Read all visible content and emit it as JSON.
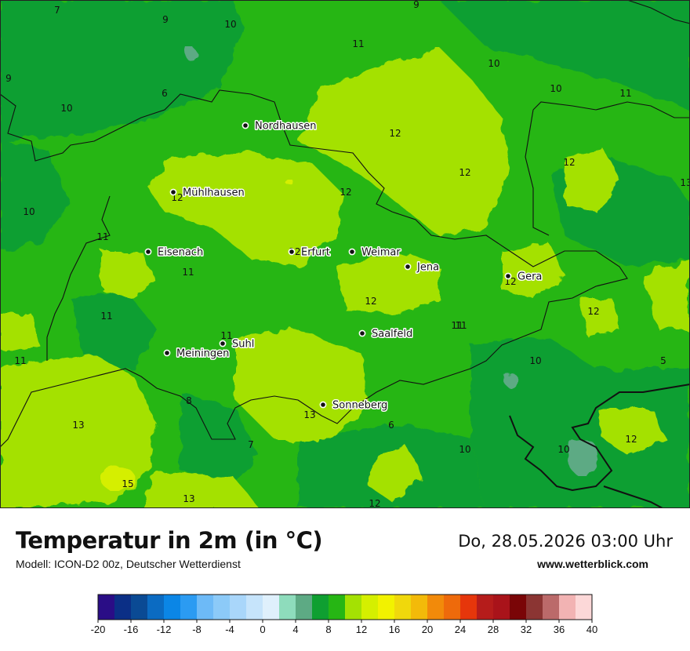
{
  "header": {
    "title": "Temperatur in 2m (in °C)",
    "model": "Modell: ICON-D2 00z, Deutscher Wetterdienst",
    "datetime": "Do, 28.05.2026 03:00 Uhr",
    "website": "www.wetterblick.com"
  },
  "map": {
    "cities": [
      {
        "name": "Nordhausen"
      },
      {
        "name": "Mühlhausen"
      },
      {
        "name": "Eisenach"
      },
      {
        "name": "Erfurt"
      },
      {
        "name": "Weimar"
      },
      {
        "name": "Jena"
      },
      {
        "name": "Gera"
      },
      {
        "name": "Saalfeld"
      },
      {
        "name": "Suhl"
      },
      {
        "name": "Meiningen"
      },
      {
        "name": "Sonneberg"
      }
    ],
    "temperature_labels": [
      "7",
      "9",
      "10",
      "9",
      "10",
      "6",
      "9",
      "10",
      "11",
      "10",
      "11",
      "11",
      "12",
      "12",
      "12",
      "12",
      "12",
      "10",
      "11",
      "11",
      "11",
      "12",
      "12",
      "11",
      "11",
      "12",
      "12",
      "11",
      "13",
      "10",
      "5",
      "8",
      "13",
      "6",
      "13",
      "7",
      "10",
      "10",
      "12",
      "15",
      "13",
      "12"
    ]
  },
  "legend": {
    "colors": [
      "#2a0d86",
      "#0b2f86",
      "#0a4a94",
      "#0b6bc2",
      "#0b86e6",
      "#2b9bf2",
      "#6dbaf7",
      "#8ccaf8",
      "#a9d6fa",
      "#c6e4fb",
      "#dff0fc",
      "#8edcbc",
      "#5daa84",
      "#0f9f31",
      "#26b614",
      "#a4e103",
      "#d5ef00",
      "#f2f200",
      "#f0d80c",
      "#f3ba09",
      "#f28a0a",
      "#ee6a0b",
      "#e6360b",
      "#b51c1b",
      "#a9131a",
      "#7a0507",
      "#8b3533",
      "#bb6a6a",
      "#f2b3b3",
      "#fcd8d8"
    ],
    "ticks": [
      "-20",
      "-16",
      "-12",
      "-8",
      "-4",
      "0",
      "4",
      "8",
      "12",
      "16",
      "20",
      "24",
      "28",
      "32",
      "36",
      "40"
    ]
  }
}
